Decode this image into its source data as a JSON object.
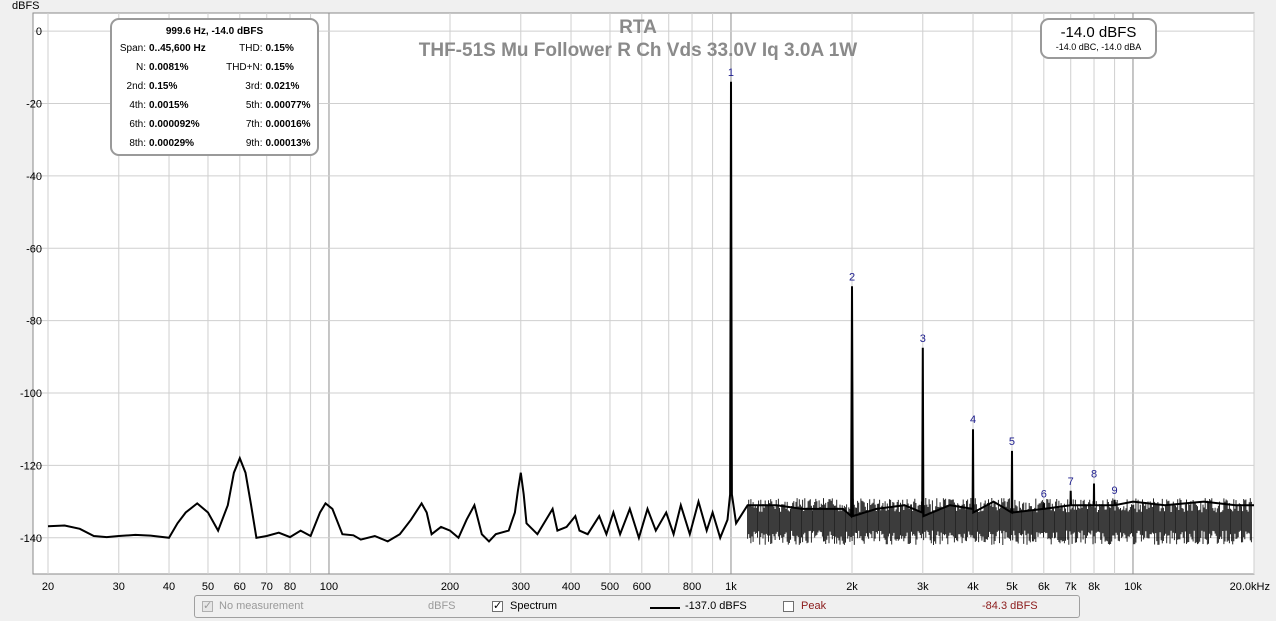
{
  "chart_data": {
    "type": "line",
    "title": "RTA",
    "subtitle": "THF-51S Mu Follower R Ch Vds 33.0V Iq 3.0A 1W",
    "ylabel": "dBFS",
    "xlabel": "",
    "x_scale": "log",
    "xlim": [
      20,
      20000
    ],
    "ylim": [
      -150,
      5
    ],
    "grid": true,
    "y_ticks": [
      0,
      -20,
      -40,
      -60,
      -80,
      -100,
      -120,
      -140
    ],
    "x_ticks": [
      {
        "value": 20,
        "label": "20"
      },
      {
        "value": 30,
        "label": "30"
      },
      {
        "value": 40,
        "label": "40"
      },
      {
        "value": 50,
        "label": "50"
      },
      {
        "value": 60,
        "label": "60"
      },
      {
        "value": 70,
        "label": "70"
      },
      {
        "value": 80,
        "label": "80"
      },
      {
        "value": 100,
        "label": "100"
      },
      {
        "value": 200,
        "label": "200"
      },
      {
        "value": 300,
        "label": "300"
      },
      {
        "value": 400,
        "label": "400"
      },
      {
        "value": 500,
        "label": "500"
      },
      {
        "value": 600,
        "label": "600"
      },
      {
        "value": 800,
        "label": "800"
      },
      {
        "value": 1000,
        "label": "1k"
      },
      {
        "value": 2000,
        "label": "2k"
      },
      {
        "value": 3000,
        "label": "3k"
      },
      {
        "value": 4000,
        "label": "4k"
      },
      {
        "value": 5000,
        "label": "5k"
      },
      {
        "value": 6000,
        "label": "6k"
      },
      {
        "value": 7000,
        "label": "7k"
      },
      {
        "value": 8000,
        "label": "8k"
      },
      {
        "value": 10000,
        "label": "10k"
      },
      {
        "value": 20000,
        "label": "20.0kHz"
      }
    ],
    "series": [
      {
        "name": "Spectrum",
        "color": "#000000",
        "noise_floor_dbfs": -140,
        "points": [
          [
            20,
            -136.8
          ],
          [
            22,
            -136.6
          ],
          [
            24,
            -137.5
          ],
          [
            26,
            -139.5
          ],
          [
            28,
            -139.8
          ],
          [
            30,
            -139.5
          ],
          [
            33,
            -139.2
          ],
          [
            36,
            -139.4
          ],
          [
            40,
            -140
          ],
          [
            42,
            -136
          ],
          [
            44,
            -133
          ],
          [
            47,
            -130.5
          ],
          [
            50,
            -133
          ],
          [
            53,
            -138
          ],
          [
            56,
            -131
          ],
          [
            58,
            -122
          ],
          [
            60,
            -118
          ],
          [
            62,
            -122
          ],
          [
            64,
            -131
          ],
          [
            66,
            -140
          ],
          [
            70,
            -139.5
          ],
          [
            75,
            -138.6
          ],
          [
            80,
            -139.8
          ],
          [
            85,
            -138
          ],
          [
            90,
            -139.5
          ],
          [
            95,
            -133
          ],
          [
            98,
            -130.5
          ],
          [
            102,
            -132
          ],
          [
            108,
            -139
          ],
          [
            115,
            -139.3
          ],
          [
            120,
            -140.5
          ],
          [
            130,
            -139.5
          ],
          [
            140,
            -141
          ],
          [
            150,
            -139
          ],
          [
            160,
            -135
          ],
          [
            170,
            -130.5
          ],
          [
            175,
            -133
          ],
          [
            180,
            -139
          ],
          [
            190,
            -137
          ],
          [
            200,
            -138
          ],
          [
            210,
            -140
          ],
          [
            220,
            -135
          ],
          [
            230,
            -131
          ],
          [
            240,
            -139
          ],
          [
            250,
            -141
          ],
          [
            260,
            -139
          ],
          [
            280,
            -138
          ],
          [
            290,
            -133
          ],
          [
            295,
            -127
          ],
          [
            300,
            -122
          ],
          [
            305,
            -128
          ],
          [
            310,
            -136
          ],
          [
            330,
            -139
          ],
          [
            360,
            -132
          ],
          [
            370,
            -138
          ],
          [
            390,
            -137
          ],
          [
            410,
            -134
          ],
          [
            420,
            -138
          ],
          [
            440,
            -139
          ],
          [
            470,
            -134
          ],
          [
            490,
            -139
          ],
          [
            510,
            -133
          ],
          [
            530,
            -139
          ],
          [
            560,
            -132
          ],
          [
            590,
            -140
          ],
          [
            620,
            -132
          ],
          [
            650,
            -138
          ],
          [
            690,
            -133
          ],
          [
            720,
            -139
          ],
          [
            750,
            -131
          ],
          [
            790,
            -139
          ],
          [
            830,
            -130
          ],
          [
            870,
            -138
          ],
          [
            900,
            -133
          ],
          [
            940,
            -140
          ],
          [
            980,
            -135
          ],
          [
            995,
            -128
          ],
          [
            1000,
            -14
          ],
          [
            1005,
            -128
          ],
          [
            1030,
            -136
          ],
          [
            1100,
            -131
          ],
          [
            1300,
            -131
          ],
          [
            1500,
            -132
          ],
          [
            1700,
            -132
          ],
          [
            1900,
            -132
          ],
          [
            1990,
            -134
          ],
          [
            2000,
            -70.5
          ],
          [
            2010,
            -134
          ],
          [
            2300,
            -132
          ],
          [
            2700,
            -131
          ],
          [
            2990,
            -133
          ],
          [
            3000,
            -87.5
          ],
          [
            3010,
            -134
          ],
          [
            3500,
            -131
          ],
          [
            3990,
            -132
          ],
          [
            4000,
            -110
          ],
          [
            4010,
            -133
          ],
          [
            4500,
            -130
          ],
          [
            4990,
            -133
          ],
          [
            5000,
            -116
          ],
          [
            5010,
            -133
          ],
          [
            5990,
            -132
          ],
          [
            6000,
            -130.5
          ],
          [
            6010,
            -132
          ],
          [
            6990,
            -131
          ],
          [
            7000,
            -127
          ],
          [
            7010,
            -131
          ],
          [
            7990,
            -131
          ],
          [
            8000,
            -125
          ],
          [
            8010,
            -131
          ],
          [
            8990,
            -131
          ],
          [
            9000,
            -129.5
          ],
          [
            9010,
            -131
          ],
          [
            10000,
            -130
          ],
          [
            12000,
            -131
          ],
          [
            15000,
            -130
          ],
          [
            18000,
            -131
          ],
          [
            20000,
            -131
          ]
        ]
      }
    ],
    "harmonic_markers": [
      {
        "label": "1",
        "freq": 1000,
        "level": -14
      },
      {
        "label": "2",
        "freq": 2000,
        "level": -70.5
      },
      {
        "label": "3",
        "freq": 3000,
        "level": -87.5
      },
      {
        "label": "4",
        "freq": 4000,
        "level": -110
      },
      {
        "label": "5",
        "freq": 5000,
        "level": -116
      },
      {
        "label": "6",
        "freq": 6000,
        "level": -130.5
      },
      {
        "label": "7",
        "freq": 7000,
        "level": -127
      },
      {
        "label": "8",
        "freq": 8000,
        "level": -125
      },
      {
        "label": "9",
        "freq": 9000,
        "level": -129.5
      }
    ]
  },
  "stats": {
    "header": "999.6 Hz, -14.0 dBFS",
    "rows": [
      [
        {
          "k": "Span:",
          "v": "0..45,600 Hz"
        },
        {
          "k": "THD:",
          "v": "0.15%"
        }
      ],
      [
        {
          "k": "N:",
          "v": "0.0081%"
        },
        {
          "k": "THD+N:",
          "v": "0.15%"
        }
      ],
      [
        {
          "k": "2nd:",
          "v": "0.15%"
        },
        {
          "k": "3rd:",
          "v": "0.021%"
        }
      ],
      [
        {
          "k": "4th:",
          "v": "0.0015%"
        },
        {
          "k": "5th:",
          "v": "0.00077%"
        }
      ],
      [
        {
          "k": "6th:",
          "v": "0.000092%"
        },
        {
          "k": "7th:",
          "v": "0.00016%"
        }
      ],
      [
        {
          "k": "8th:",
          "v": "0.00029%"
        },
        {
          "k": "9th:",
          "v": "0.00013%"
        }
      ]
    ]
  },
  "level": {
    "main": "-14.0 dBFS",
    "sub": "-14.0 dBC, -14.0 dBA"
  },
  "legend": {
    "no_measurement": "No measurement",
    "no_measurement_unit": "dBFS",
    "spectrum": "Spectrum",
    "spectrum_value": "-137.0 dBFS",
    "peak": "Peak",
    "peak_value": "-84.3 dBFS",
    "no_measurement_checked": true,
    "spectrum_checked": true,
    "peak_checked": false
  }
}
